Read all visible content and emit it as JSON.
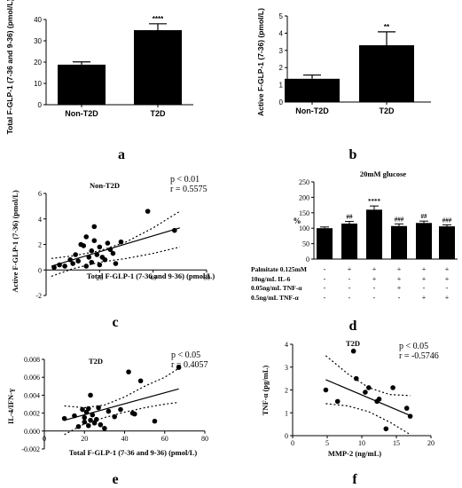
{
  "chart_data": [
    {
      "panel": "a",
      "type": "bar",
      "ylabel": "Total F-GLP-1 (7-36 and 9-36) (pmol/L)",
      "yticks": [
        0,
        10,
        20,
        30,
        40
      ],
      "ylim": [
        0,
        40
      ],
      "categories": [
        "Non-T2D",
        "T2D"
      ],
      "values": [
        18.8,
        35.0
      ],
      "errors": [
        1.3,
        3.0
      ],
      "significance": [
        "",
        "****"
      ]
    },
    {
      "panel": "b",
      "type": "bar",
      "ylabel": "Active F-GLP-1 (7-36) (pmol/L)",
      "yticks": [
        0,
        1,
        2,
        3,
        4,
        5
      ],
      "ylim": [
        0,
        5
      ],
      "categories": [
        "Non-T2D",
        "T2D"
      ],
      "values": [
        1.35,
        3.3
      ],
      "errors": [
        0.22,
        0.78
      ],
      "significance": [
        "",
        "**"
      ]
    },
    {
      "panel": "c",
      "type": "scatter",
      "title": "Non-T2D",
      "xlabel": "Total F-GLP-1 (7-36 and 9-36) (pmol/L)",
      "ylabel": "Active F-GLP-1 (7-36) (pmol/L)",
      "xticks": [
        20,
        40,
        60
      ],
      "yticks": [
        -2,
        0,
        2,
        4,
        6
      ],
      "xlim": [
        0,
        60
      ],
      "ylim": [
        -2,
        6
      ],
      "stats": [
        "p < 0.01",
        "r = 0.5575"
      ],
      "regression": [
        [
          2,
          0.3
        ],
        [
          50,
          3.3
        ]
      ],
      "ci_upper": [
        [
          2,
          0.9
        ],
        [
          10,
          1.1
        ],
        [
          20,
          1.5
        ],
        [
          30,
          2.2
        ],
        [
          40,
          3.3
        ],
        [
          50,
          4.6
        ]
      ],
      "ci_lower": [
        [
          2,
          -0.5
        ],
        [
          10,
          0.1
        ],
        [
          20,
          0.6
        ],
        [
          30,
          0.9
        ],
        [
          40,
          1.3
        ],
        [
          50,
          1.8
        ]
      ],
      "x": [
        3,
        5,
        7,
        9,
        10,
        11,
        12,
        13,
        14,
        15,
        15,
        16,
        17,
        17,
        18,
        18,
        19,
        20,
        20,
        21,
        22,
        23,
        24,
        25,
        26,
        28,
        38,
        48
      ],
      "y": [
        0.2,
        0.4,
        0.3,
        0.8,
        0.5,
        1.2,
        0.7,
        2.0,
        1.9,
        2.6,
        0.3,
        1.0,
        1.5,
        0.6,
        2.3,
        3.4,
        1.2,
        0.4,
        1.8,
        1.0,
        0.8,
        2.1,
        1.6,
        1.3,
        0.5,
        2.2,
        4.6,
        3.1
      ]
    },
    {
      "panel": "d",
      "type": "bar",
      "title": "20mM glucose",
      "ylabel": "%",
      "yticks": [
        0,
        50,
        100,
        150,
        200,
        250
      ],
      "ylim": [
        0,
        250
      ],
      "values": [
        100,
        115,
        160,
        107,
        117,
        106
      ],
      "errors": [
        4,
        7,
        12,
        7,
        6,
        5
      ],
      "significance": [
        "",
        "##",
        "****",
        "###",
        "##",
        "###"
      ],
      "conditions": [
        {
          "label": "Palmitate 0.125mM",
          "signs": [
            "-",
            "+",
            "+",
            "+",
            "+",
            "+"
          ]
        },
        {
          "label": "10ng/mL IL-6",
          "signs": [
            "-",
            "-",
            "+",
            "+",
            "+",
            "+"
          ]
        },
        {
          "label": "0.05ng/mL TNF-α",
          "signs": [
            "-",
            "-",
            "-",
            "+",
            "-",
            "-"
          ]
        },
        {
          "label": "0.5ng/mL TNF-α",
          "signs": [
            "-",
            "-",
            "-",
            "-",
            "+",
            "+"
          ]
        }
      ]
    },
    {
      "panel": "e",
      "type": "scatter",
      "title": "T2D",
      "xlabel": "Total F-GLP-1 (7-36 and 9-36) (pmol/L)",
      "ylabel": "IL-4/IFN-γ",
      "xticks": [
        0,
        20,
        40,
        60,
        80
      ],
      "yticks": [
        "-0.002",
        "0.000",
        "0.002",
        "0.004",
        "0.006",
        "0.008"
      ],
      "xlim": [
        0,
        80
      ],
      "ylim": [
        -0.002,
        0.008
      ],
      "stats": [
        "p < 0.05",
        "r = 0.4057"
      ],
      "regression": [
        [
          10,
          0.0012
        ],
        [
          67,
          0.0047
        ]
      ],
      "ci_upper": [
        [
          10,
          0.0028
        ],
        [
          20,
          0.0026
        ],
        [
          30,
          0.0029
        ],
        [
          40,
          0.0038
        ],
        [
          50,
          0.005
        ],
        [
          60,
          0.006
        ],
        [
          67,
          0.007
        ]
      ],
      "ci_lower": [
        [
          10,
          -0.0004
        ],
        [
          20,
          0.0008
        ],
        [
          30,
          0.0015
        ],
        [
          40,
          0.0021
        ],
        [
          50,
          0.0026
        ],
        [
          60,
          0.003
        ],
        [
          67,
          0.0032
        ]
      ],
      "x": [
        10,
        15,
        17,
        19,
        20,
        20,
        21,
        22,
        22,
        23,
        23,
        24,
        25,
        26,
        27,
        28,
        30,
        32,
        35,
        38,
        42,
        44,
        45,
        48,
        55,
        67
      ],
      "y": [
        0.0014,
        0.0017,
        0.0005,
        0.0024,
        0.0015,
        0.001,
        0.0021,
        0.0006,
        0.0025,
        0.004,
        0.0012,
        0.0018,
        0.0009,
        0.0013,
        0.0026,
        0.0007,
        0.0003,
        0.0022,
        0.0016,
        0.0024,
        0.0066,
        0.002,
        0.0019,
        0.0056,
        0.0011,
        0.0071
      ]
    },
    {
      "panel": "f",
      "type": "scatter",
      "title": "T2D",
      "xlabel": "MMP-2 (ng/mL)",
      "ylabel": "TNF-α (pg/mL)",
      "xticks": [
        0,
        5,
        10,
        15,
        20
      ],
      "yticks": [
        0,
        1,
        2,
        3,
        4
      ],
      "xlim": [
        0,
        20
      ],
      "ylim": [
        0,
        4
      ],
      "stats": [
        "p < 0.05",
        "r = -0.5746"
      ],
      "regression": [
        [
          4.8,
          2.45
        ],
        [
          17,
          0.88
        ]
      ],
      "ci_upper": [
        [
          4.8,
          3.5
        ],
        [
          8,
          2.7
        ],
        [
          11,
          2.1
        ],
        [
          14,
          1.8
        ],
        [
          17,
          1.75
        ]
      ],
      "ci_lower": [
        [
          4.8,
          1.4
        ],
        [
          8,
          1.3
        ],
        [
          11,
          1.05
        ],
        [
          14,
          0.6
        ],
        [
          17,
          0.05
        ]
      ],
      "x": [
        4.8,
        6.5,
        8.8,
        9.2,
        10.5,
        11.0,
        12.2,
        12.5,
        13.5,
        14.5,
        16.5,
        17.0
      ],
      "y": [
        2.0,
        1.5,
        3.7,
        2.5,
        1.9,
        2.1,
        1.5,
        1.6,
        0.3,
        2.1,
        1.2,
        0.85
      ]
    }
  ],
  "panel_letters": [
    "a",
    "b",
    "c",
    "d",
    "e",
    "f"
  ]
}
